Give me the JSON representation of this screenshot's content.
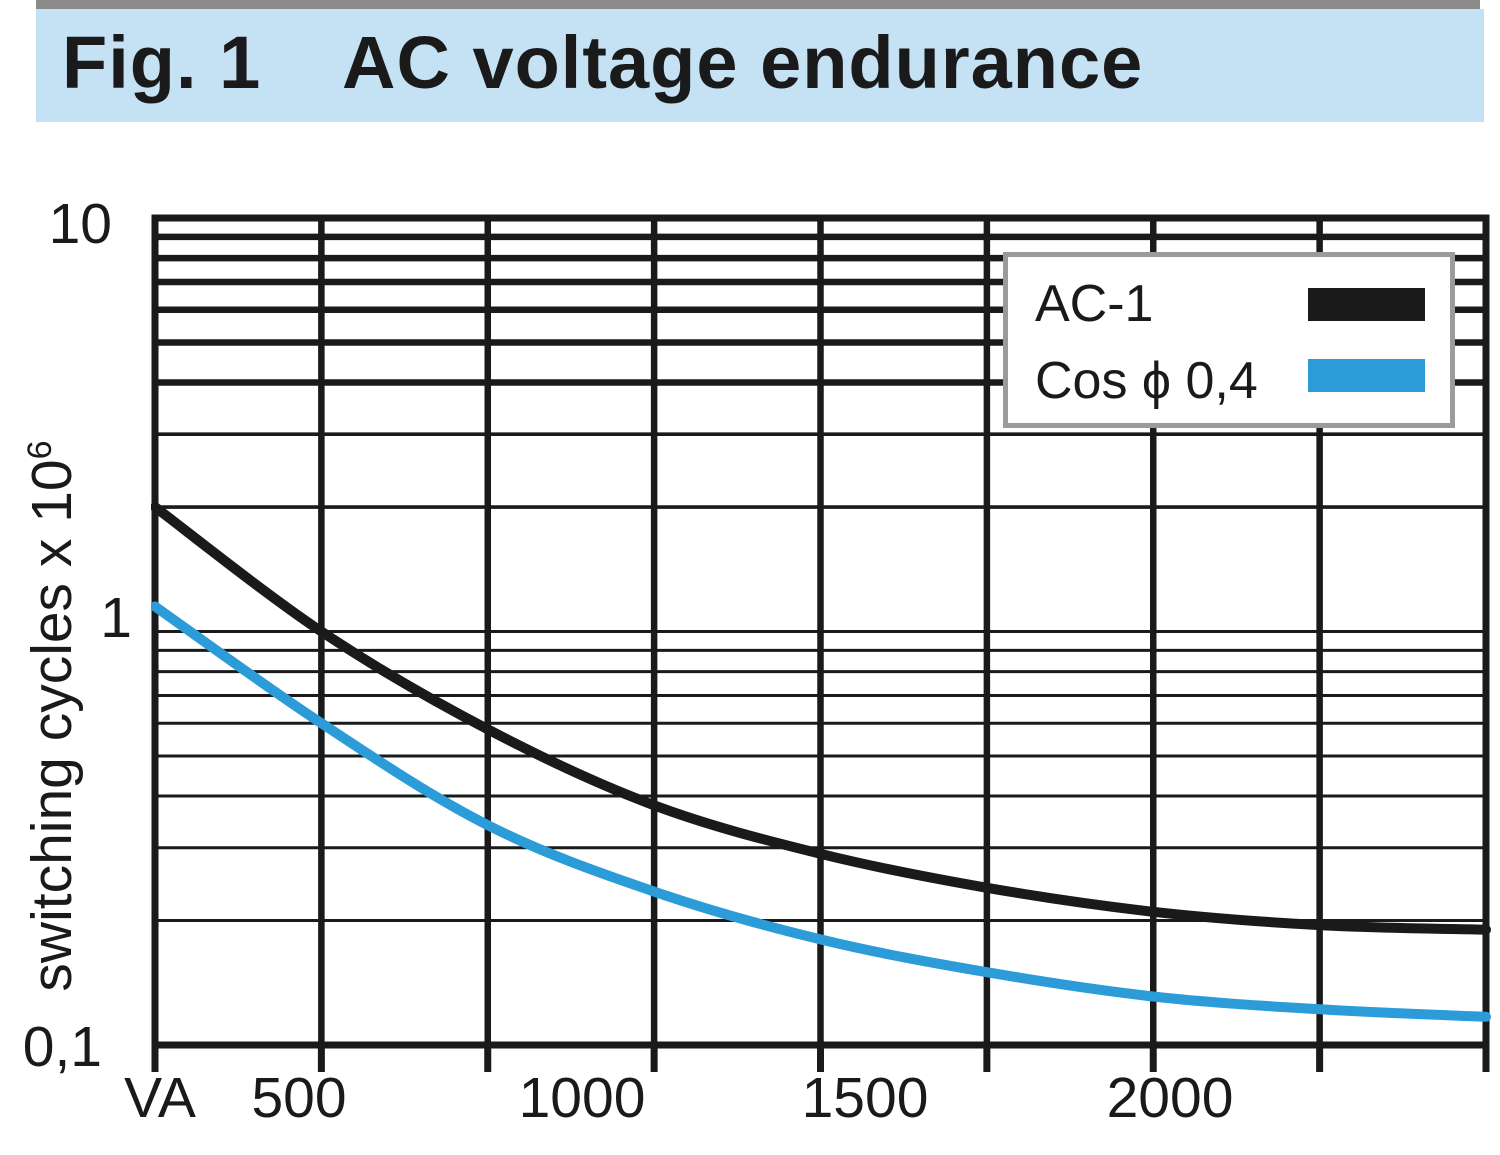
{
  "figure": {
    "label": "Fig. 1",
    "title": "AC voltage endurance"
  },
  "colors": {
    "top_bar": "#8b8b8b",
    "banner_background": "#c5e2f5",
    "grid_black": "#1a1a1a",
    "curve_blue": "#2b9cd8",
    "legend_border": "#9b9b9b"
  },
  "y_axis": {
    "title_base": "switching cycles x 10",
    "title_exponent": "6",
    "tick_labels": [
      "10",
      "1",
      "0,1"
    ]
  },
  "x_axis": {
    "unit_label": "VA",
    "tick_labels": [
      "500",
      "1000",
      "1500",
      "2000"
    ]
  },
  "legend": {
    "items": [
      {
        "label": "AC-1",
        "color": "#1a1a1a"
      },
      {
        "label": "Cos ϕ 0,4",
        "color": "#2b9cd8"
      }
    ]
  },
  "chart_data": {
    "type": "line",
    "title": "AC voltage endurance",
    "xlabel": "VA",
    "ylabel": "switching cycles x 10^6",
    "y_scale": "log",
    "xlim": [
      250,
      2250
    ],
    "ylim": [
      0.1,
      10
    ],
    "grid": "on",
    "legend_position": "top-right",
    "x_gridline_step_va": 250,
    "labeled_x_ticks": [
      500,
      1000,
      1500,
      2000
    ],
    "y_gridline_values": [
      9,
      8,
      7,
      6,
      5,
      4,
      3,
      2,
      1,
      0.9,
      0.8,
      0.7,
      0.6,
      0.5,
      0.4,
      0.3,
      0.2
    ],
    "x": [
      250,
      500,
      750,
      1000,
      1250,
      1500,
      1750,
      2000,
      2250
    ],
    "series": [
      {
        "name": "AC-1",
        "color": "#1a1a1a",
        "values": [
          2.0,
          1.0,
          0.58,
          0.38,
          0.29,
          0.24,
          0.21,
          0.195,
          0.19
        ]
      },
      {
        "name": "Cos ϕ 0,4",
        "color": "#2b9cd8",
        "values": [
          1.15,
          0.6,
          0.34,
          0.235,
          0.18,
          0.15,
          0.131,
          0.122,
          0.117
        ]
      }
    ]
  }
}
